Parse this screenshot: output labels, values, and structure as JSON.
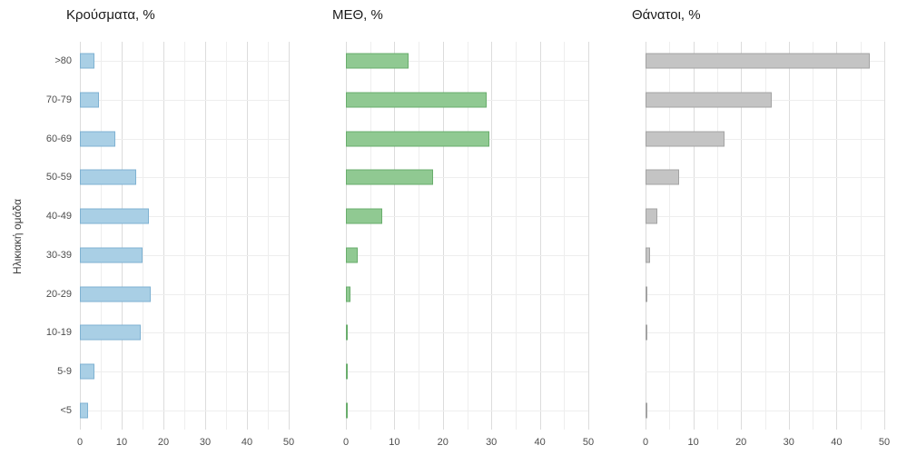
{
  "chart_data": {
    "type": "bar",
    "orientation": "horizontal",
    "ylabel": "Ηλικιακή ομάδα",
    "xlabel": "",
    "xlim": [
      0,
      50
    ],
    "xticks_major": [
      0,
      10,
      20,
      30,
      40,
      50
    ],
    "xticks_minor": [
      5,
      15,
      25,
      35,
      45
    ],
    "grid": true,
    "legend": "none",
    "categories": [
      ">80",
      "70-79",
      "60-69",
      "50-59",
      "40-49",
      "30-39",
      "20-29",
      "10-19",
      "5-9",
      "<5"
    ],
    "series": [
      {
        "name": "Κρούσματα, %",
        "color": "#a9cfe5",
        "border": "#7fb2d2",
        "values": [
          3.5,
          4.5,
          8.5,
          13.5,
          16.5,
          15,
          17,
          14.5,
          3.5,
          2
        ]
      },
      {
        "name": "ΜΕΘ, %",
        "color": "#90c992",
        "border": "#69ad6c",
        "values": [
          13,
          29,
          29.5,
          18,
          7.5,
          2.5,
          1,
          0.3,
          0.2,
          0.3
        ]
      },
      {
        "name": "Θάνατοι, %",
        "color": "#c4c4c4",
        "border": "#a3a3a3",
        "values": [
          47,
          26.5,
          16.5,
          7,
          2.5,
          1,
          0.3,
          0.2,
          0,
          0.3
        ]
      }
    ]
  }
}
